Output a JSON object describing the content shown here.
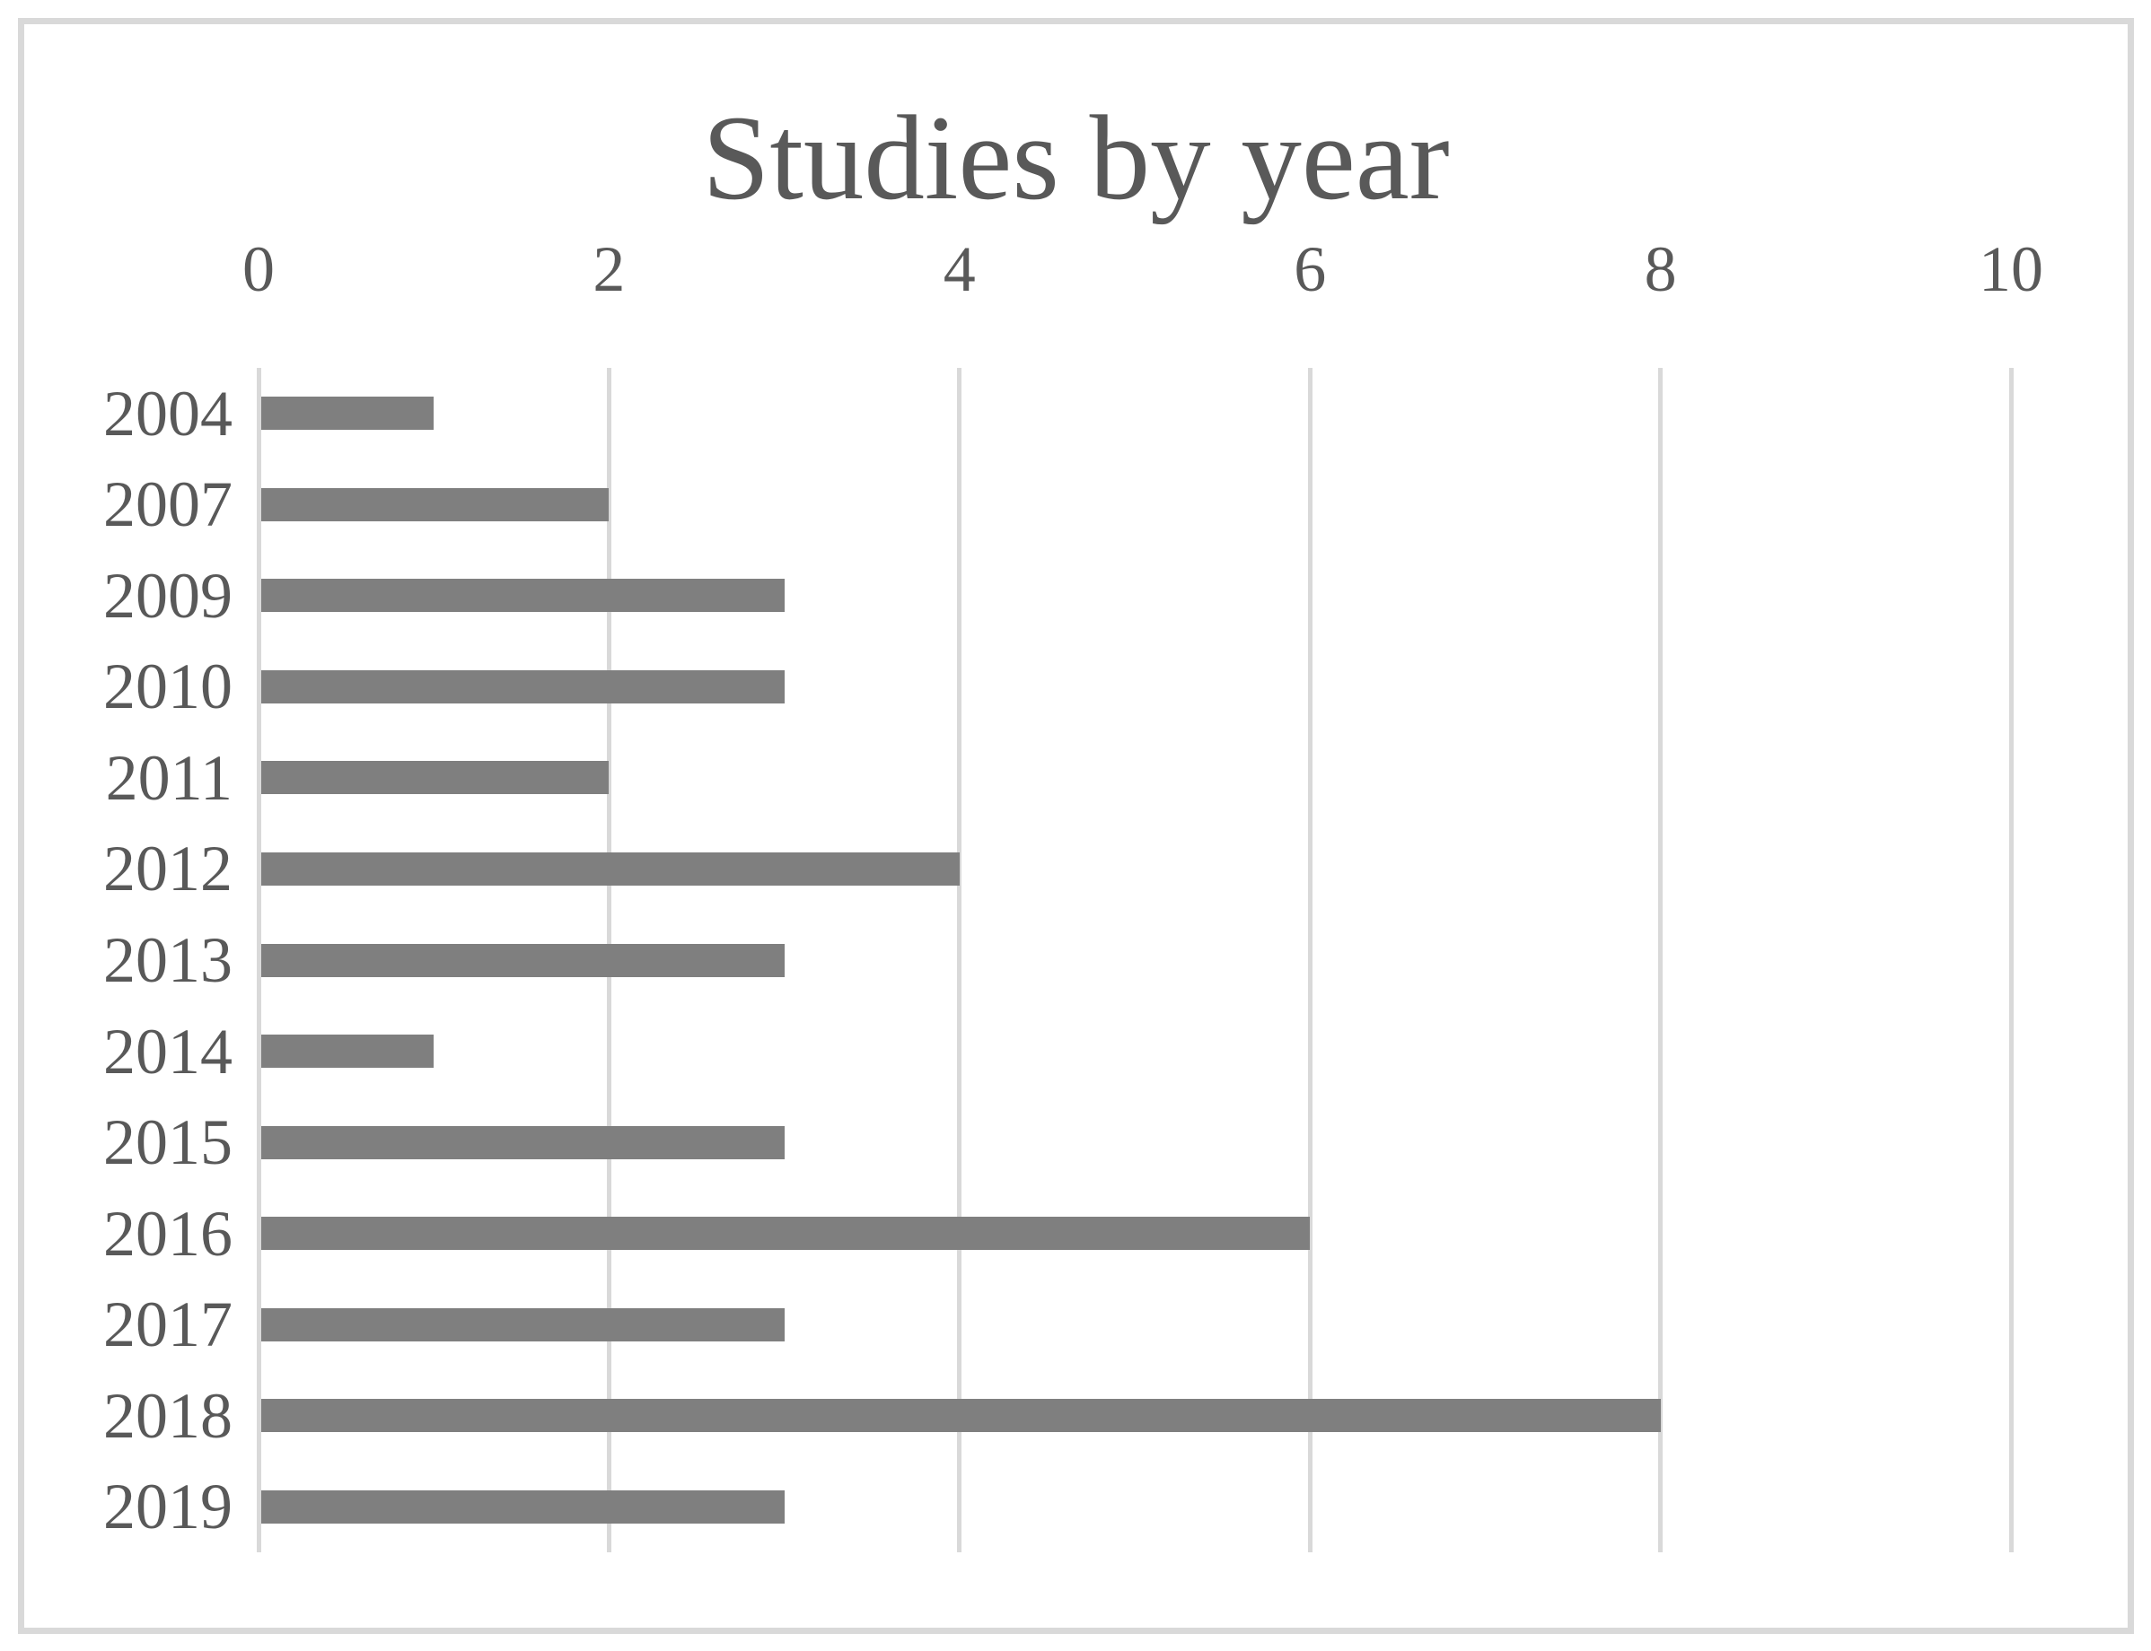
{
  "chart_data": {
    "type": "bar",
    "orientation": "horizontal",
    "title": "Studies by year",
    "categories": [
      "2004",
      "2007",
      "2009",
      "2010",
      "2011",
      "2012",
      "2013",
      "2014",
      "2015",
      "2016",
      "2017",
      "2018",
      "2019"
    ],
    "values": [
      1,
      2,
      3,
      3,
      2,
      4,
      3,
      1,
      3,
      6,
      3,
      8,
      3
    ],
    "xlabel": "",
    "ylabel": "",
    "xlim": [
      0,
      10
    ],
    "x_ticks": [
      0,
      2,
      4,
      6,
      8,
      10
    ],
    "x_axis_position": "top",
    "gridlines": "vertical",
    "legend": "none",
    "data_labels": "none",
    "colors": {
      "bar": "#7f7f7f",
      "gridline": "#d9d9d9",
      "axis_line": "#d9d9d9",
      "text": "#595959",
      "frame_border": "#d9d9d9",
      "background": "#ffffff"
    }
  }
}
